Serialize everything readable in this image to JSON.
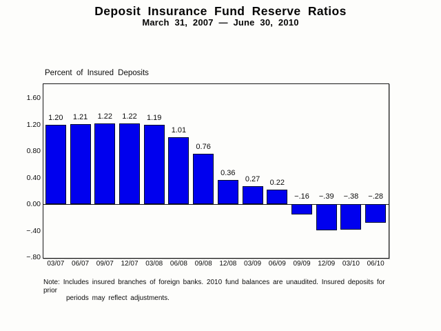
{
  "chart_data": {
    "type": "bar",
    "title": "Deposit Insurance Fund Reserve Ratios",
    "subtitle": "March 31, 2007 — June 30, 2010",
    "ylabel": "Percent of Insured Deposits",
    "xlabel": "",
    "categories": [
      "03/07",
      "06/07",
      "09/07",
      "12/07",
      "03/08",
      "06/08",
      "09/08",
      "12/08",
      "03/09",
      "06/09",
      "09/09",
      "12/09",
      "03/10",
      "06/10"
    ],
    "values": [
      1.2,
      1.21,
      1.22,
      1.22,
      1.19,
      1.01,
      0.76,
      0.36,
      0.27,
      0.22,
      -0.16,
      -0.39,
      -0.38,
      -0.28
    ],
    "bar_labels": [
      "1.20",
      "1.21",
      "1.22",
      "1.22",
      "1.19",
      "1.01",
      "0.76",
      "0.36",
      "0.27",
      "0.22",
      "−.16",
      "−.39",
      "−.38",
      "−.28"
    ],
    "y_ticks": [
      {
        "value": 1.6,
        "label": "1.60"
      },
      {
        "value": 1.2,
        "label": "1.20"
      },
      {
        "value": 0.8,
        "label": "0.80"
      },
      {
        "value": 0.4,
        "label": "0.40"
      },
      {
        "value": 0.0,
        "label": "0.00"
      },
      {
        "value": -0.4,
        "label": "−.40"
      },
      {
        "value": -0.8,
        "label": "−.80"
      }
    ],
    "ylim": [
      -0.8,
      1.81
    ],
    "grid": false,
    "zero_line": true,
    "legend": "none",
    "bar_color": "#0000ee",
    "bar_border_color": "#000a2a",
    "frame_color": "#161616",
    "text_color": "#0a0a0a",
    "background_color": "#fdfdfb"
  },
  "note": {
    "label": "Note:",
    "line1": "Includes insured branches of foreign banks. 2010 fund balances are unaudited. Insured deposits for prior",
    "line2": "periods may reflect adjustments."
  }
}
